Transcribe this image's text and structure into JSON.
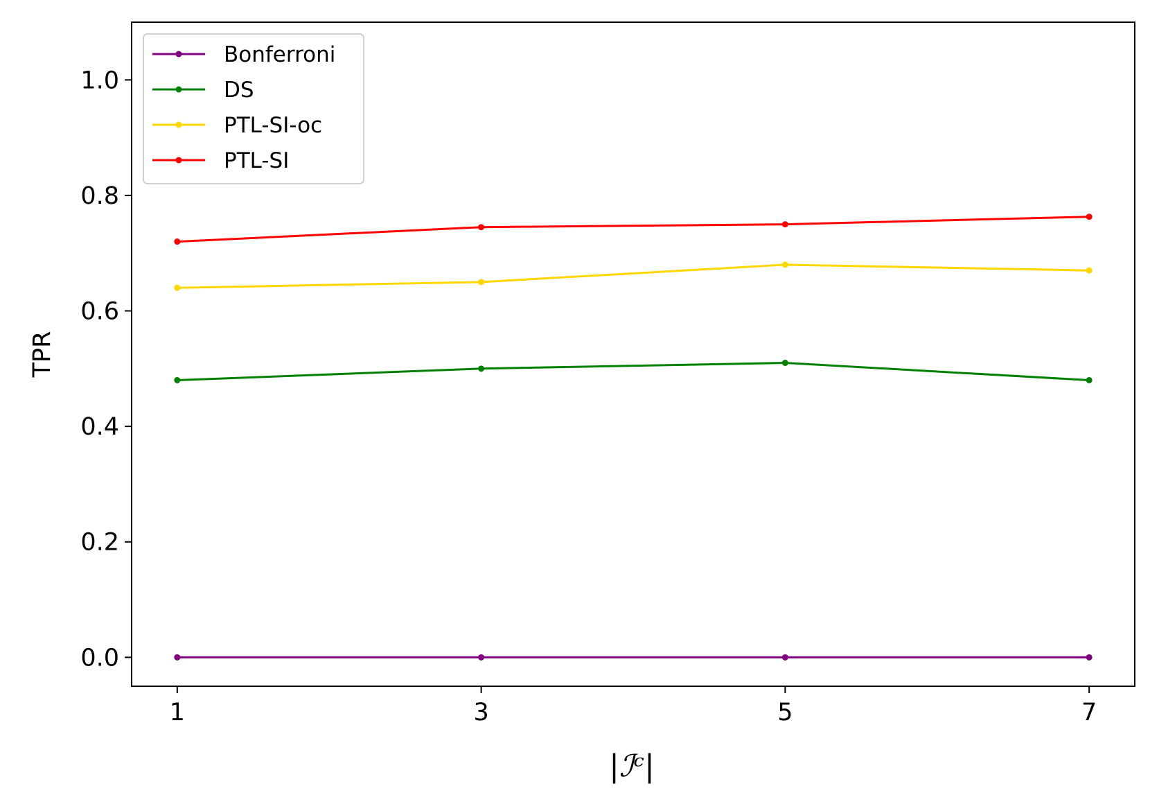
{
  "chart_data": {
    "type": "line",
    "title": "",
    "xlabel": "|ℐᶜ|",
    "ylabel": "TPR",
    "x": [
      1,
      3,
      5,
      7
    ],
    "xticks": [
      "1",
      "3",
      "5",
      "7"
    ],
    "yticks": [
      "0.0",
      "0.2",
      "0.4",
      "0.6",
      "0.8",
      "1.0"
    ],
    "xlim": [
      0.7,
      7.3
    ],
    "ylim": [
      -0.05,
      1.1
    ],
    "grid": false,
    "legend_position": "top-left",
    "series": [
      {
        "name": "Bonferroni",
        "color": "#800080",
        "values": [
          0.0,
          0.0,
          0.0,
          0.0
        ]
      },
      {
        "name": "DS",
        "color": "#008000",
        "values": [
          0.48,
          0.5,
          0.51,
          0.48
        ]
      },
      {
        "name": "PTL-SI-oc",
        "color": "#FFD700",
        "values": [
          0.64,
          0.65,
          0.68,
          0.67
        ]
      },
      {
        "name": "PTL-SI",
        "color": "#FF0000",
        "values": [
          0.72,
          0.745,
          0.75,
          0.763
        ]
      }
    ]
  }
}
